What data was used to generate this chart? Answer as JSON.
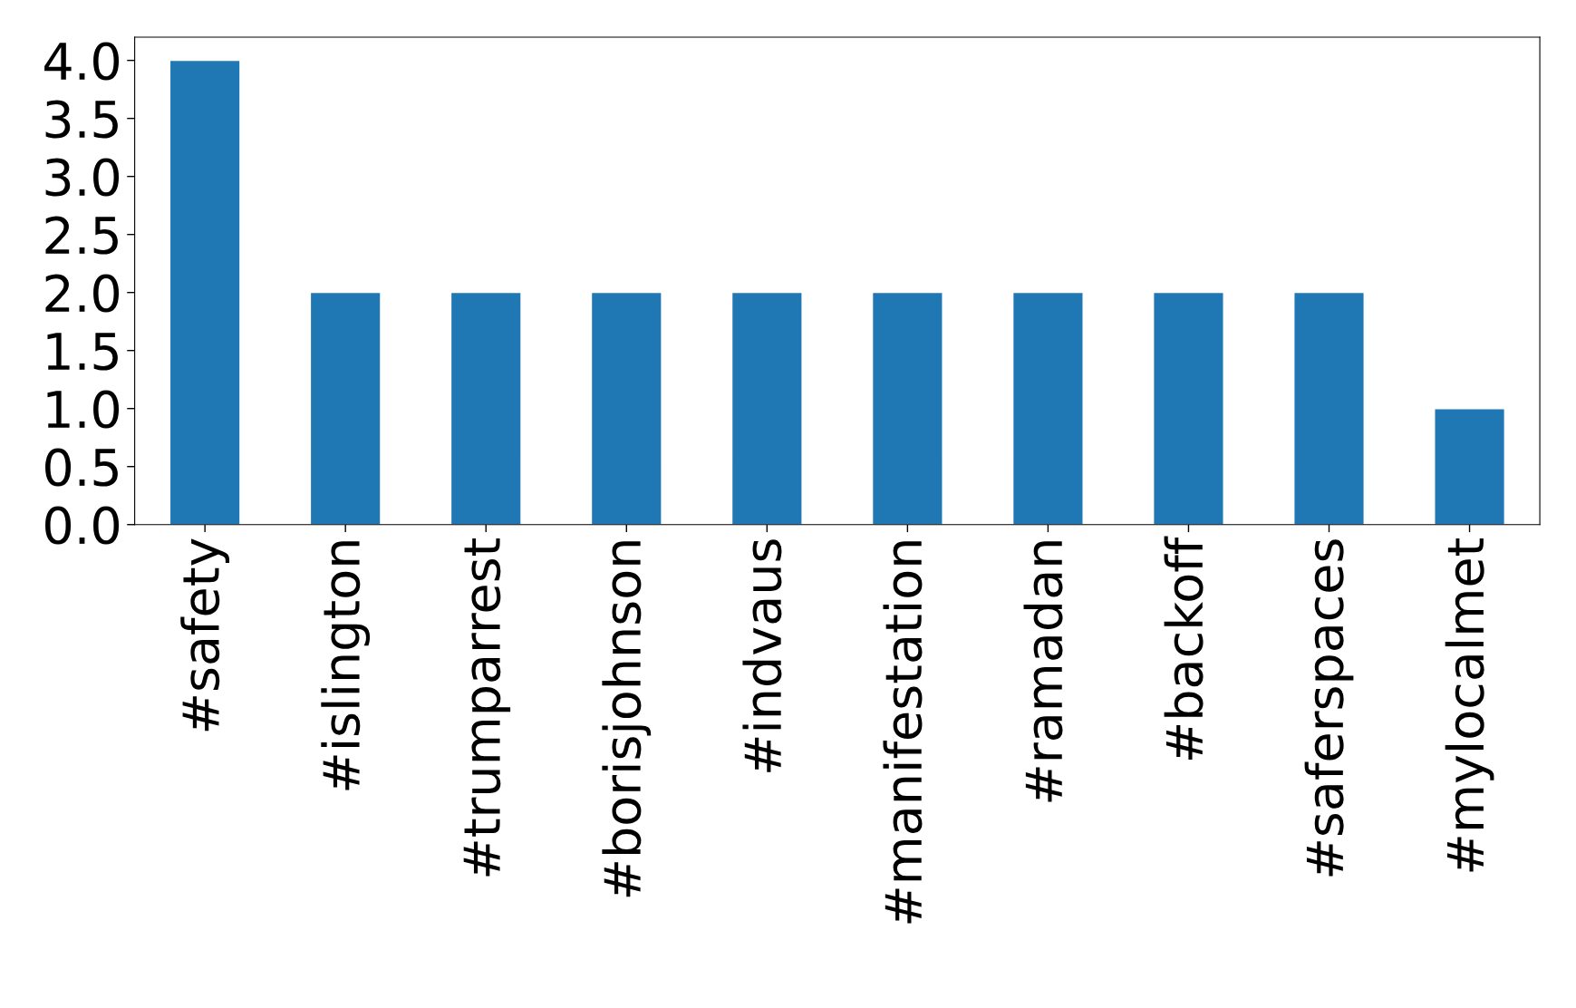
{
  "chart_data": {
    "type": "bar",
    "categories": [
      "#safety",
      "#islington",
      "#trumparrest",
      "#borisjohnson",
      "#indvaus",
      "#manifestation",
      "#ramadan",
      "#backoff",
      "#saferspaces",
      "#mylocalmet"
    ],
    "values": [
      4,
      2,
      2,
      2,
      2,
      2,
      2,
      2,
      2,
      1
    ],
    "color": "#1f77b4",
    "ylim": [
      0,
      4.2
    ],
    "yticks": [
      {
        "value": 0,
        "label": "0.0"
      },
      0.5,
      {
        "value": 1,
        "label": "1.0"
      },
      1.5,
      {
        "value": 2,
        "label": "2.0"
      },
      2.5,
      {
        "value": 3,
        "label": "3.0"
      },
      3.5,
      {
        "value": 4,
        "label": "4.0"
      }
    ],
    "grid": false
  }
}
